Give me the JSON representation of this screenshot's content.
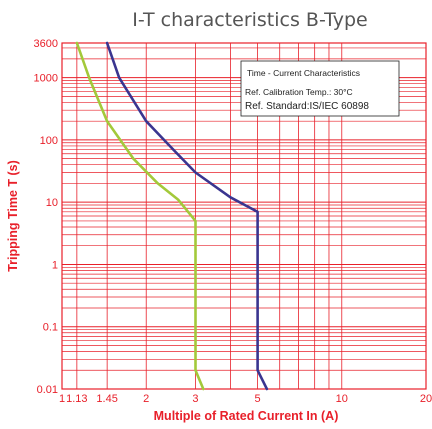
{
  "chart_data": {
    "type": "line",
    "title": "I-T characteristics B-Type",
    "xlabel": "Multiple of Rated Current In (A)",
    "ylabel": "Tripping Time T (s)",
    "x_scale": "log",
    "y_scale": "log",
    "xlim": [
      1,
      20
    ],
    "ylim": [
      0.01,
      3600
    ],
    "x_ticks": [
      {
        "value": 1,
        "label": "1"
      },
      {
        "value": 1.13,
        "label": "1.13"
      },
      {
        "value": 1.45,
        "label": "1.45"
      },
      {
        "value": 2,
        "label": "2"
      },
      {
        "value": 3,
        "label": "3"
      },
      {
        "value": 5,
        "label": "5"
      },
      {
        "value": 10,
        "label": "10"
      },
      {
        "value": 20,
        "label": "20"
      }
    ],
    "y_ticks": [
      {
        "value": 0.01,
        "label": "0.01"
      },
      {
        "value": 0.1,
        "label": "0.1"
      },
      {
        "value": 1,
        "label": "1"
      },
      {
        "value": 10,
        "label": "10"
      },
      {
        "value": 100,
        "label": "100"
      },
      {
        "value": 1000,
        "label": "1000"
      },
      {
        "value": 3600,
        "label": "3600"
      }
    ],
    "grid": true,
    "series": [
      {
        "color": "#a3c93a",
        "points": [
          [
            1.13,
            3600
          ],
          [
            1.25,
            1000
          ],
          [
            1.45,
            200
          ],
          [
            1.8,
            50
          ],
          [
            2.2,
            20
          ],
          [
            2.6,
            11
          ],
          [
            3.0,
            5
          ],
          [
            3.0,
            0.02
          ],
          [
            3.2,
            0.01
          ]
        ]
      },
      {
        "color": "#3a3590",
        "points": [
          [
            1.45,
            3600
          ],
          [
            1.6,
            1000
          ],
          [
            2.0,
            200
          ],
          [
            2.5,
            70
          ],
          [
            3.0,
            30
          ],
          [
            4.0,
            12
          ],
          [
            5.0,
            7
          ],
          [
            5.0,
            0.02
          ],
          [
            5.4,
            0.01
          ]
        ]
      }
    ],
    "annotation": {
      "lines": [
        "Time - Current Characteristics",
        "Ref. Calibration Temp.: 30°C",
        "Ref. Standard:IS/IEC 60898"
      ]
    },
    "colors": {
      "grid": "#e8202a",
      "tick_text": "#e8202a",
      "axis_label": "#e8202a",
      "title": "#555555"
    }
  }
}
